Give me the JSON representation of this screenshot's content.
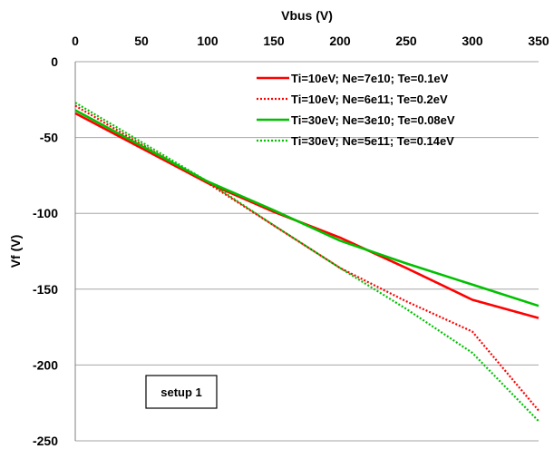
{
  "chart_data": {
    "type": "line",
    "title": "",
    "xlabel": "Vbus (V)",
    "ylabel": "Vf (V)",
    "xlim": [
      0,
      350
    ],
    "ylim": [
      -250,
      0
    ],
    "x_axis_position": "top",
    "x_ticks": [
      0,
      50,
      100,
      150,
      200,
      250,
      300,
      350
    ],
    "y_ticks": [
      0,
      -50,
      -100,
      -150,
      -200,
      -250
    ],
    "grid": "horizontal",
    "legend_position": "top-right",
    "annotation": "setup 1",
    "series": [
      {
        "name": "Ti=10eV; Ne=7e10; Te=0.1eV",
        "color": "#ff0000",
        "dash": "solid",
        "x": [
          0,
          100,
          150,
          200,
          250,
          300,
          350
        ],
        "y": [
          -34,
          -80,
          -99,
          -116,
          -136,
          -157,
          -169
        ]
      },
      {
        "name": "Ti=10eV; Ne=6e11; Te=0.2eV",
        "color": "#ff0000",
        "dash": "dotted",
        "x": [
          0,
          100,
          150,
          200,
          250,
          300,
          350
        ],
        "y": [
          -29,
          -80,
          -108,
          -136,
          -158,
          -178,
          -230
        ]
      },
      {
        "name": "Ti=30eV; Ne=3e10; Te=0.08eV",
        "color": "#00c000",
        "dash": "solid",
        "x": [
          0,
          100,
          150,
          200,
          250,
          300,
          350
        ],
        "y": [
          -32,
          -79,
          -98,
          -118,
          -133,
          -147,
          -161
        ]
      },
      {
        "name": "Ti=30eV; Ne=5e11; Te=0.14eV",
        "color": "#00c000",
        "dash": "dotted",
        "x": [
          0,
          100,
          150,
          200,
          250,
          300,
          350
        ],
        "y": [
          -27,
          -79,
          -108,
          -136,
          -163,
          -192,
          -237
        ]
      }
    ]
  }
}
